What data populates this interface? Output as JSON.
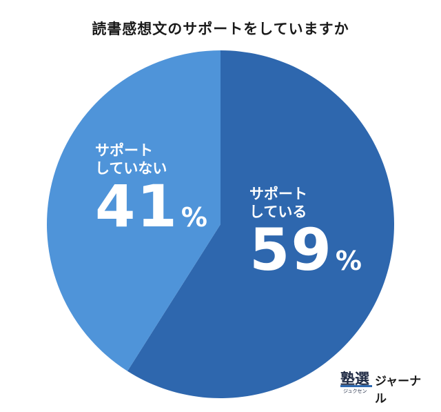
{
  "chart_data": {
    "type": "pie",
    "title": "読書感想文のサポートをしていますか",
    "slices": [
      {
        "label": "サポート\nしている",
        "value": 59,
        "unit": "%",
        "color": "#2e67ae"
      },
      {
        "label": "サポート\nしていない",
        "value": 41,
        "unit": "%",
        "color": "#4f94d9"
      }
    ],
    "legend": "none"
  },
  "logo": {
    "kanji": "塾選",
    "kana": "ジュクセン",
    "word": "ジャーナル"
  }
}
